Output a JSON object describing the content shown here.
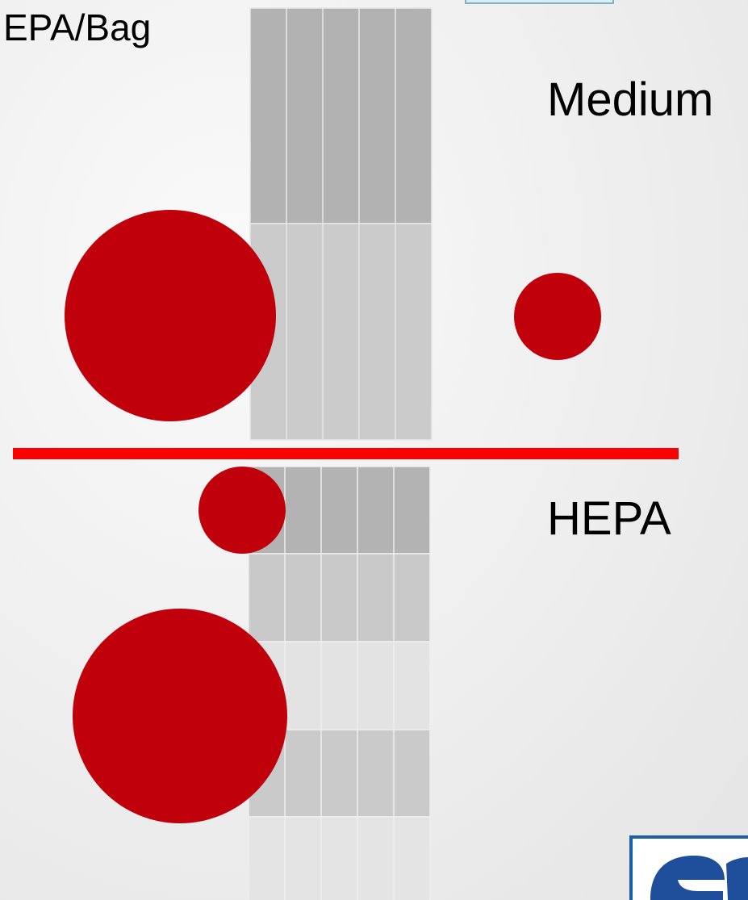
{
  "labels": {
    "top_left": "EPA/Bag",
    "top_right": "Medium",
    "bottom_right": "HEPA"
  }
}
